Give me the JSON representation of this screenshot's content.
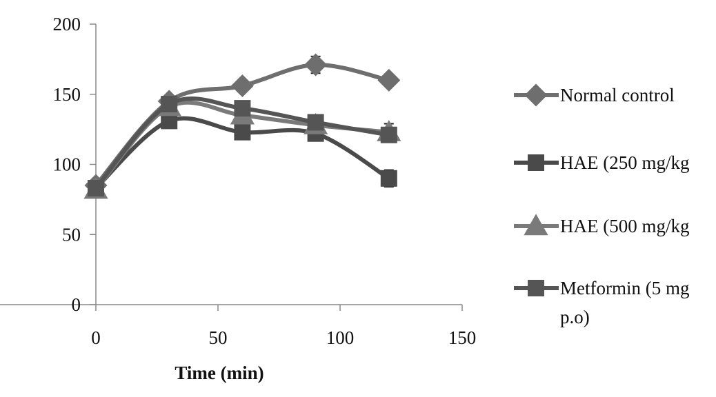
{
  "chart_data": {
    "type": "line",
    "title": "",
    "xlabel": "Time  (min)",
    "ylabel": "",
    "xlim": [
      0,
      150
    ],
    "ylim": [
      0,
      200
    ],
    "x_ticks": [
      0,
      50,
      100,
      150
    ],
    "y_ticks": [
      0,
      50,
      100,
      150,
      200
    ],
    "x_tick_labels": [
      "0",
      "50",
      "100",
      "150"
    ],
    "y_tick_labels": [
      "0",
      "50",
      "100",
      "150",
      "200"
    ],
    "grid": false,
    "legend_position": "right",
    "x": [
      0,
      30,
      60,
      90,
      120
    ],
    "series": [
      {
        "name": "Normal control",
        "legend_lines": [
          "Normal control"
        ],
        "marker": "diamond",
        "color": "#6e6e6e",
        "values": [
          85,
          145,
          156,
          171,
          160
        ],
        "errors": [
          0,
          2,
          4,
          6,
          3
        ]
      },
      {
        "name": "HAE (250 mg/kg",
        "legend_lines": [
          "HAE (250 mg/kg"
        ],
        "marker": "square",
        "color": "#4a4a4a",
        "values": [
          83,
          131,
          123,
          122,
          90
        ],
        "errors": [
          0,
          0,
          0,
          0,
          6
        ]
      },
      {
        "name": "HAE (500 mg/kg",
        "legend_lines": [
          "HAE (500 mg/kg"
        ],
        "marker": "triangle",
        "color": "#7a7a7a",
        "values": [
          82,
          141,
          135,
          128,
          123
        ],
        "errors": [
          0,
          0,
          0,
          0,
          6
        ]
      },
      {
        "name": "Metformin (5 mg p.o)",
        "legend_lines": [
          "Metformin (5 mg",
          "p.o)"
        ],
        "marker": "square",
        "color": "#555555",
        "values": [
          83,
          143,
          140,
          130,
          121
        ],
        "errors": [
          0,
          0,
          0,
          0,
          5
        ]
      }
    ]
  }
}
